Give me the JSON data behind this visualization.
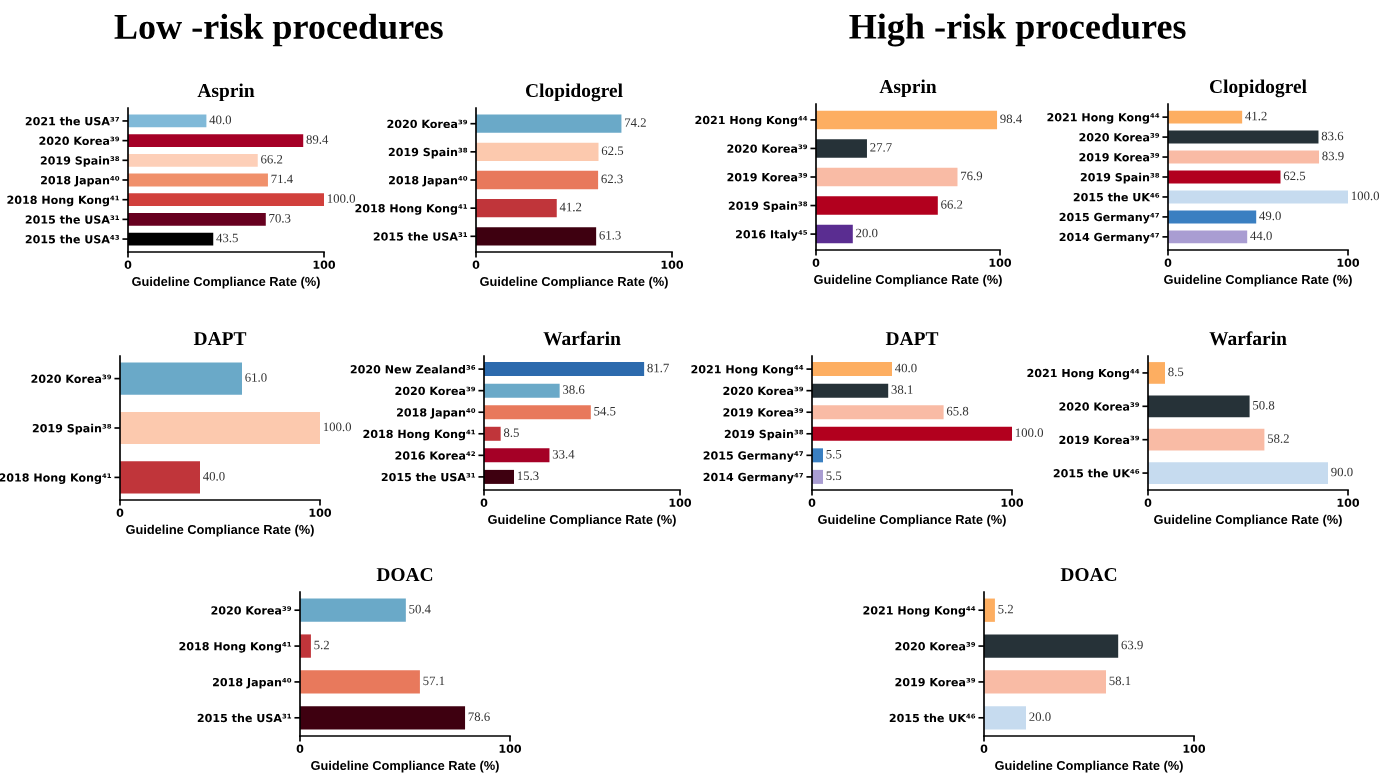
{
  "chart_data": [
    {
      "type": "bar",
      "orientation": "horizontal",
      "title": "Asprin",
      "annotations": [
        "Low -risk procedures"
      ],
      "xlabel": "Guideline Compliance Rate (%)",
      "xlim": [
        0,
        100
      ],
      "xticks": [
        0,
        100
      ],
      "categories": [
        "2021 the USA³⁷",
        "2020 Korea³⁹",
        "2019 Spain³⁸",
        "2018 Japan⁴⁰",
        "2018 Hong Kong⁴¹",
        "2015 the USA³¹",
        "2015 the USA⁴³"
      ],
      "values": [
        40.0,
        89.4,
        66.2,
        71.4,
        100.0,
        70.3,
        43.5
      ],
      "value_labels": [
        "40.0",
        "89.4",
        "66.2",
        "71.4",
        "100.0",
        "70.3",
        "43.5"
      ],
      "colors": [
        "#80b9d8",
        "#a50026",
        "#fdcfb8",
        "#f0906b",
        "#d1403c",
        "#67001f",
        "#000000"
      ]
    },
    {
      "type": "bar",
      "orientation": "horizontal",
      "title": "Clopidogrel",
      "xlabel": "Guideline Compliance Rate (%)",
      "xlim": [
        0,
        100
      ],
      "xticks": [
        0,
        100
      ],
      "categories": [
        "2020 Korea³⁹",
        "2019 Spain³⁸",
        "2018 Japan⁴⁰",
        "2018 Hong Kong⁴¹",
        "2015 the USA³¹"
      ],
      "values": [
        74.2,
        62.5,
        62.3,
        41.2,
        61.3
      ],
      "value_labels": [
        "74.2",
        "62.5",
        "62.3",
        "41.2",
        "61.3"
      ],
      "colors": [
        "#6aa9c8",
        "#fcc9ae",
        "#e8795c",
        "#c0353a",
        "#3e0010"
      ]
    },
    {
      "type": "bar",
      "orientation": "horizontal",
      "title": "DAPT",
      "xlabel": "Guideline Compliance Rate (%)",
      "xlim": [
        0,
        100
      ],
      "xticks": [
        0,
        100
      ],
      "categories": [
        "2020 Korea³⁹",
        "2019 Spain³⁸",
        "2018 Hong Kong⁴¹"
      ],
      "values": [
        61.0,
        100.0,
        40.0
      ],
      "value_labels": [
        "61.0",
        "100.0",
        "40.0"
      ],
      "colors": [
        "#6aa9c8",
        "#fcc9ae",
        "#c0353a"
      ]
    },
    {
      "type": "bar",
      "orientation": "horizontal",
      "title": "Warfarin",
      "xlabel": "Guideline Compliance Rate (%)",
      "xlim": [
        0,
        100
      ],
      "xticks": [
        0,
        100
      ],
      "categories": [
        "2020 New Zealand³⁶",
        "2020 Korea³⁹",
        "2018 Japan⁴⁰",
        "2018 Hong Kong⁴¹",
        "2016 Korea⁴²",
        "2015 the USA³¹"
      ],
      "values": [
        81.7,
        38.6,
        54.5,
        8.5,
        33.4,
        15.3
      ],
      "value_labels": [
        "81.7",
        "38.6",
        "54.5",
        "8.5",
        "33.4",
        "15.3"
      ],
      "colors": [
        "#2c6aad",
        "#6aa9c8",
        "#e8795c",
        "#c0353a",
        "#a50026",
        "#3e0010"
      ]
    },
    {
      "type": "bar",
      "orientation": "horizontal",
      "title": "DOAC",
      "xlabel": "Guideline Compliance Rate (%)",
      "xlim": [
        0,
        100
      ],
      "xticks": [
        0,
        100
      ],
      "categories": [
        "2020 Korea³⁹",
        "2018 Hong Kong⁴¹",
        "2018 Japan⁴⁰",
        "2015 the USA³¹"
      ],
      "values": [
        50.4,
        5.2,
        57.1,
        78.6
      ],
      "value_labels": [
        "50.4",
        "5.2",
        "57.1",
        "78.6"
      ],
      "colors": [
        "#6aa9c8",
        "#c0353a",
        "#e8795c",
        "#3e0010"
      ]
    },
    {
      "type": "bar",
      "orientation": "horizontal",
      "title": "Asprin",
      "annotations": [
        "High -risk procedures"
      ],
      "xlabel": "Guideline Compliance Rate (%)",
      "xlim": [
        0,
        100
      ],
      "xticks": [
        0,
        100
      ],
      "categories": [
        "2021 Hong Kong⁴⁴",
        "2020 Korea³⁹",
        "2019 Korea³⁹",
        "2019 Spain³⁸",
        "2016 Italy⁴⁵"
      ],
      "values": [
        98.4,
        27.7,
        76.9,
        66.2,
        20.0
      ],
      "value_labels": [
        "98.4",
        "27.7",
        "76.9",
        "66.2",
        "20.0"
      ],
      "colors": [
        "#fdae61",
        "#263238",
        "#f9bba5",
        "#b2001e",
        "#5a2d91"
      ]
    },
    {
      "type": "bar",
      "orientation": "horizontal",
      "title": "Clopidogrel",
      "xlabel": "Guideline Compliance Rate (%)",
      "xlim": [
        0,
        100
      ],
      "xticks": [
        0,
        100
      ],
      "categories": [
        "2021 Hong Kong⁴⁴",
        "2020 Korea³⁹",
        "2019 Korea³⁹",
        "2019 Spain³⁸",
        "2015 the UK⁴⁶",
        "2015 Germany⁴⁷",
        "2014 Germany⁴⁷"
      ],
      "values": [
        41.2,
        83.6,
        83.9,
        62.5,
        100.0,
        49.0,
        44.0
      ],
      "value_labels": [
        "41.2",
        "83.6",
        "83.9",
        "62.5",
        "100.0",
        "49.0",
        "44.0"
      ],
      "colors": [
        "#fdae61",
        "#263238",
        "#f9bba5",
        "#b2001e",
        "#c6dbef",
        "#3a7fc1",
        "#a99dd2"
      ]
    },
    {
      "type": "bar",
      "orientation": "horizontal",
      "title": "DAPT",
      "xlabel": "Guideline Compliance Rate (%)",
      "xlim": [
        0,
        100
      ],
      "xticks": [
        0,
        100
      ],
      "categories": [
        "2021 Hong Kong⁴⁴",
        "2020 Korea³⁹",
        "2019 Korea³⁹",
        "2019 Spain³⁸",
        "2015 Germany⁴⁷",
        "2014 Germany⁴⁷"
      ],
      "values": [
        40.0,
        38.1,
        65.8,
        100.0,
        5.5,
        5.5
      ],
      "value_labels": [
        "40.0",
        "38.1",
        "65.8",
        "100.0",
        "5.5",
        "5.5"
      ],
      "colors": [
        "#fdae61",
        "#263238",
        "#f9bba5",
        "#b2001e",
        "#3a7fc1",
        "#a99dd2"
      ]
    },
    {
      "type": "bar",
      "orientation": "horizontal",
      "title": "Warfarin",
      "xlabel": "Guideline Compliance Rate (%)",
      "xlim": [
        0,
        100
      ],
      "xticks": [
        0,
        100
      ],
      "categories": [
        "2021 Hong Kong⁴⁴",
        "2020 Korea³⁹",
        "2019 Korea³⁹",
        "2015 the UK⁴⁶"
      ],
      "values": [
        8.5,
        50.8,
        58.2,
        90.0
      ],
      "value_labels": [
        "8.5",
        "50.8",
        "58.2",
        "90.0"
      ],
      "colors": [
        "#fdae61",
        "#263238",
        "#f9bba5",
        "#c6dbef"
      ]
    },
    {
      "type": "bar",
      "orientation": "horizontal",
      "title": "DOAC",
      "xlabel": "Guideline Compliance Rate (%)",
      "xlim": [
        0,
        100
      ],
      "xticks": [
        0,
        100
      ],
      "categories": [
        "2021 Hong Kong⁴⁴",
        "2020 Korea³⁹",
        "2019 Korea³⁹",
        "2015 the UK⁴⁶"
      ],
      "values": [
        5.2,
        63.9,
        58.1,
        20.0
      ],
      "value_labels": [
        "5.2",
        "63.9",
        "58.1",
        "20.0"
      ],
      "colors": [
        "#fdae61",
        "#263238",
        "#f9bba5",
        "#c6dbef"
      ]
    }
  ]
}
